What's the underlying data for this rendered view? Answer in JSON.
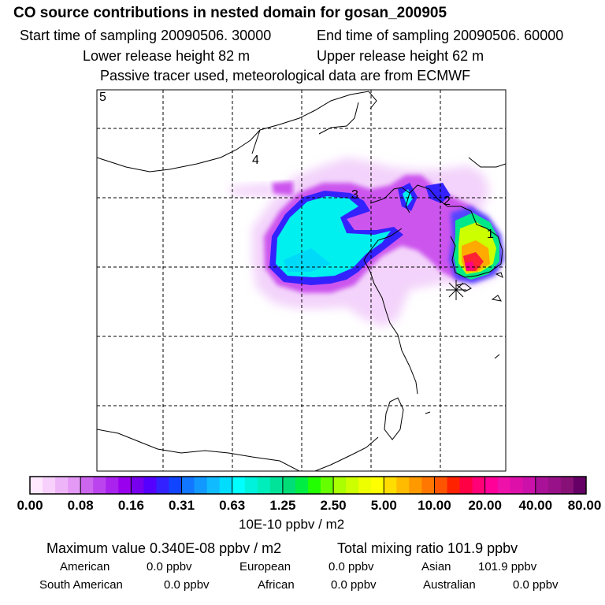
{
  "title": "CO  source contributions in nested domain for gosan_200905",
  "start_time": "Start time of sampling 20090506. 30000",
  "end_time": "End time of sampling 20090506. 60000",
  "lower_release": "Lower release height   82 m",
  "upper_release": "Upper release height   62 m",
  "passive_note": "Passive tracer used, meteorological data are from ECMWF",
  "map_labels": [
    "5",
    "4",
    "3",
    "2",
    "1"
  ],
  "colorbar": {
    "ticks": [
      "0.00",
      "0.08",
      "0.16",
      "0.31",
      "0.63",
      "1.25",
      "2.50",
      "5.00",
      "10.00",
      "20.00",
      "40.00",
      "80.00"
    ],
    "units": "10E-10 ppbv / m2",
    "colors": [
      "#ffe9ff",
      "#f7d0fb",
      "#eeb4f8",
      "#e399f5",
      "#cc66ee",
      "#bb44ee",
      "#aa22ee",
      "#9900ee",
      "#7700ee",
      "#5500ff",
      "#3322ff",
      "#1144ff",
      "#1177ff",
      "#1199ff",
      "#11bbff",
      "#00ddff",
      "#00ffff",
      "#00f2dd",
      "#00eebb",
      "#00e399",
      "#00dd77",
      "#00ee44",
      "#22ff00",
      "#66ff00",
      "#aaff00",
      "#ccff00",
      "#eeff00",
      "#ffff00",
      "#ffdd00",
      "#ffbb00",
      "#ff9900",
      "#ff7700",
      "#ff5500",
      "#ff2200",
      "#ff0044",
      "#ff0077",
      "#ff0099",
      "#ee11aa",
      "#dd11aa",
      "#cc11aa",
      "#aa1199",
      "#991188",
      "#881177",
      "#660066"
    ]
  },
  "stats": {
    "maximum": "Maximum value  0.340E-08 ppbv / m2",
    "total": "Total mixing ratio      101.9 ppbv",
    "american_label": "American",
    "american_value": "0.0 ppbv",
    "european_label": "European",
    "european_value": "0.0 ppbv",
    "asian_label": "Asian",
    "asian_value": "101.9 ppbv",
    "south_american_label": "South American",
    "south_american_value": "0.0 ppbv",
    "african_label": "African",
    "african_value": "0.0 ppbv",
    "australian_label": "Australian",
    "australian_value": "0.0 ppbv"
  }
}
